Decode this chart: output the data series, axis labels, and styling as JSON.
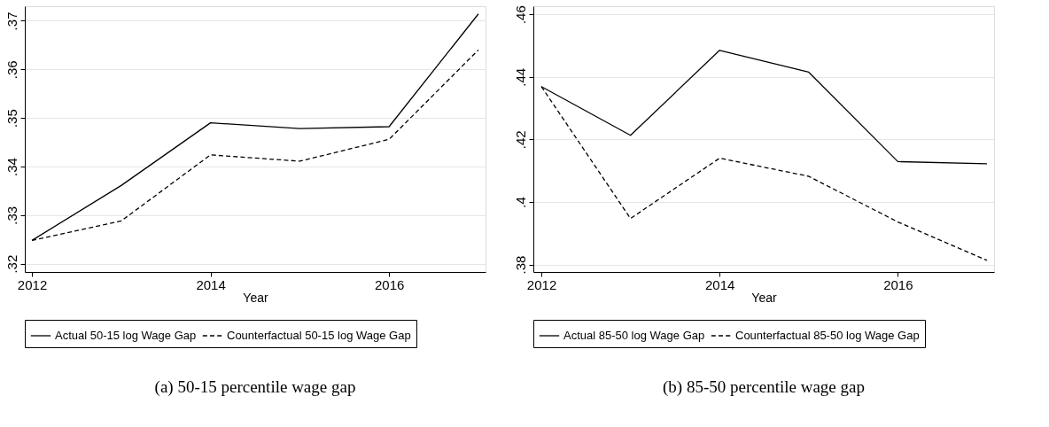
{
  "chart_data": [
    {
      "type": "line",
      "title": "(a) 50-15 percentile wage gap",
      "xlabel": "Year",
      "x": [
        2012,
        2013,
        2014,
        2015,
        2016,
        2017
      ],
      "xlim": [
        2011.92,
        2017.08
      ],
      "xticks": [
        2012,
        2014,
        2016
      ],
      "ylim": [
        0.3183,
        0.373
      ],
      "yticks": [
        {
          "value": 0.32,
          "label": ".32"
        },
        {
          "value": 0.33,
          "label": ".33"
        },
        {
          "value": 0.34,
          "label": ".34"
        },
        {
          "value": 0.35,
          "label": ".35"
        },
        {
          "value": 0.36,
          "label": ".36"
        },
        {
          "value": 0.37,
          "label": ".37"
        }
      ],
      "grid": "y",
      "legend": "bottom",
      "marker": "none",
      "series": [
        {
          "name": "Actual 50-15 log Wage Gap",
          "color": "#000000",
          "line_style": "solid",
          "values": [
            0.3248,
            0.3361,
            0.349,
            0.3478,
            0.3482,
            0.3714
          ]
        },
        {
          "name": "Counterfactual 50-15 log Wage Gap",
          "color": "#000000",
          "line_style": "dashed",
          "values": [
            0.3248,
            0.3288,
            0.3424,
            0.3411,
            0.3456,
            0.364
          ]
        }
      ]
    },
    {
      "type": "line",
      "title": "(b) 85-50 percentile wage gap",
      "xlabel": "Year",
      "x": [
        2012,
        2013,
        2014,
        2015,
        2016,
        2017
      ],
      "xlim": [
        2011.91,
        2017.08
      ],
      "xticks": [
        2012,
        2014,
        2016
      ],
      "ylim": [
        0.3776,
        0.4626
      ],
      "yticks": [
        {
          "value": 0.38,
          "label": ".38"
        },
        {
          "value": 0.4,
          "label": ".4"
        },
        {
          "value": 0.42,
          "label": ".42"
        },
        {
          "value": 0.44,
          "label": ".44"
        },
        {
          "value": 0.46,
          "label": ".46"
        }
      ],
      "grid": "y",
      "legend": "bottom",
      "marker": "none",
      "series": [
        {
          "name": "Actual 85-50 log Wage Gap",
          "color": "#000000",
          "line_style": "solid",
          "values": [
            0.4369,
            0.4213,
            0.4485,
            0.4415,
            0.4129,
            0.4122
          ]
        },
        {
          "name": "Counterfactual 85-50 log Wage Gap",
          "color": "#000000",
          "line_style": "dashed",
          "values": [
            0.4369,
            0.3947,
            0.414,
            0.4082,
            0.3936,
            0.3813
          ]
        }
      ]
    }
  ]
}
